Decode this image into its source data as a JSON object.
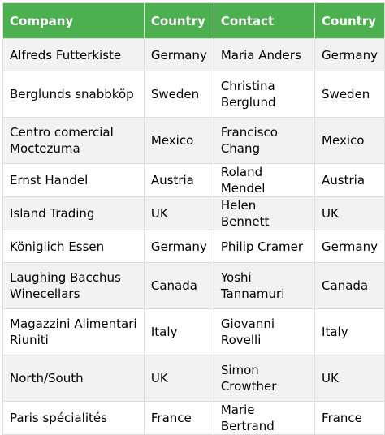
{
  "table": {
    "headers": [
      "Company",
      "Country",
      "Contact",
      "Country"
    ],
    "rows": [
      [
        "Alfreds Futterkiste",
        "Germany",
        "Maria Anders",
        "Germany"
      ],
      [
        "Berglunds snabbköp",
        "Sweden",
        "Christina Berglund",
        "Sweden"
      ],
      [
        "Centro comercial Moctezuma",
        "Mexico",
        "Francisco Chang",
        "Mexico"
      ],
      [
        "Ernst Handel",
        "Austria",
        "Roland Mendel",
        "Austria"
      ],
      [
        "Island Trading",
        "UK",
        "Helen Bennett",
        "UK"
      ],
      [
        "Königlich Essen",
        "Germany",
        "Philip Cramer",
        "Germany"
      ],
      [
        "Laughing Bacchus Winecellars",
        "Canada",
        "Yoshi Tannamuri",
        "Canada"
      ],
      [
        "Magazzini Alimentari Riuniti",
        "Italy",
        "Giovanni Rovelli",
        "Italy"
      ],
      [
        "North/South",
        "UK",
        "Simon Crowther",
        "UK"
      ],
      [
        "Paris spécialités",
        "France",
        "Marie Bertrand",
        "France"
      ]
    ]
  },
  "colors": {
    "header_bg": "#4caf50",
    "header_text": "#ffffff",
    "stripe_bg": "#f2f2f2",
    "border": "#dddddd"
  }
}
